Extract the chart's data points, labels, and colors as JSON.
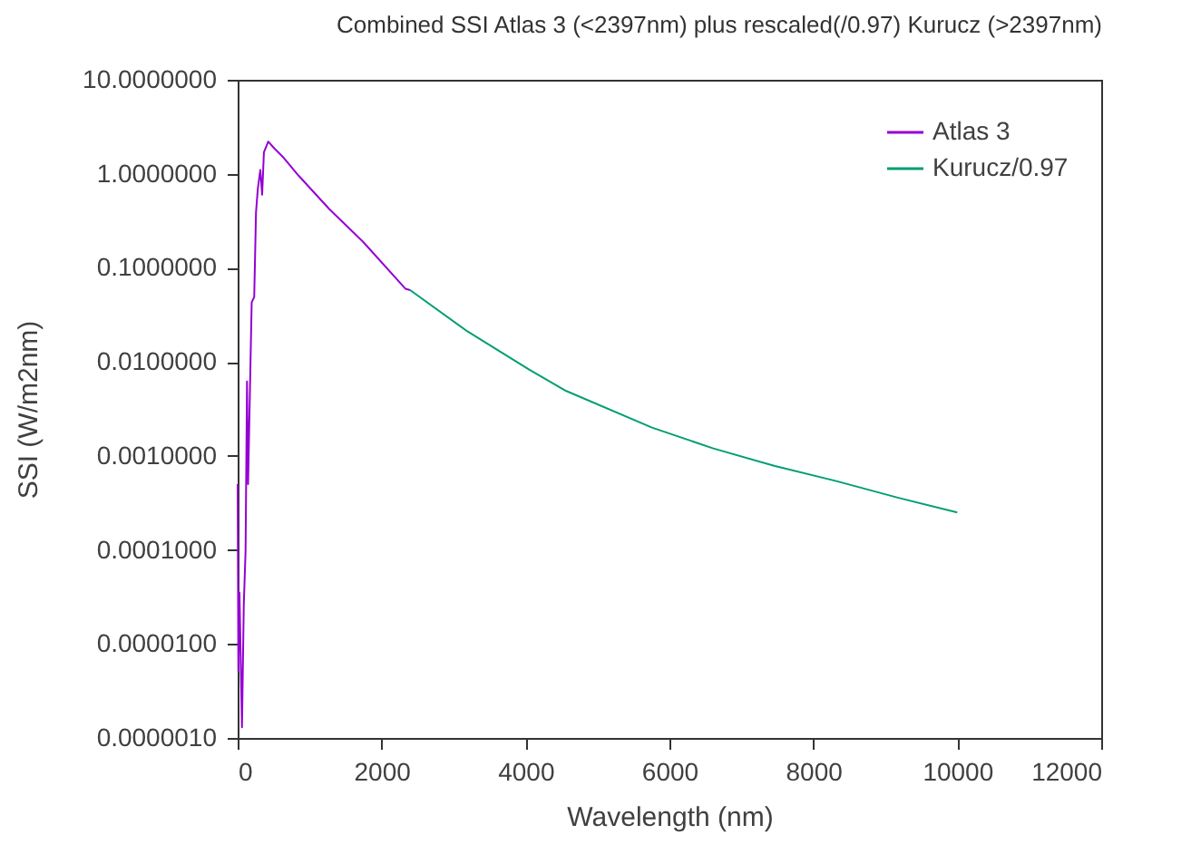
{
  "chart_data": {
    "type": "line",
    "title": "Combined SSI Atlas 3 (<2397nm) plus rescaled(/0.97) Kurucz (>2397nm)",
    "xlabel": "Wavelength (nm)",
    "ylabel": "SSI (W/m2nm)",
    "series": [
      {
        "name": "Atlas 3",
        "color": "#9400d3",
        "x": [
          0,
          10,
          25,
          60,
          85,
          110,
          130,
          145,
          170,
          195,
          230,
          255,
          280,
          315,
          340,
          365,
          425,
          510,
          640,
          850,
          1275,
          1740,
          2330,
          2397
        ],
        "values": [
          0.0005,
          5.1e-06,
          3.5e-05,
          1.3e-06,
          2.6e-05,
          9.8e-05,
          0.0062,
          0.0005,
          0.0047,
          0.043,
          0.049,
          0.39,
          0.69,
          1.1,
          0.6,
          1.7,
          2.2,
          1.86,
          1.48,
          0.95,
          0.42,
          0.19,
          0.06,
          0.058
        ]
      },
      {
        "name": "Kurucz/0.97",
        "color": "#009e73",
        "x": [
          2397,
          3196,
          4050,
          4566,
          5757,
          6610,
          7465,
          8318,
          9171,
          10000
        ],
        "values": [
          0.058,
          0.021,
          0.0083,
          0.0049,
          0.002,
          0.0012,
          0.00078,
          0.00054,
          0.00036,
          0.00025
        ]
      }
    ],
    "xlim": [
      0,
      12000
    ],
    "xticks": [
      0,
      2000,
      4000,
      6000,
      8000,
      10000,
      12000
    ],
    "ylim": [
      1e-06,
      10
    ],
    "yticks": [
      {
        "value": 10,
        "label": "10.0000000"
      },
      {
        "value": 1,
        "label": "1.0000000"
      },
      {
        "value": 0.1,
        "label": "0.1000000"
      },
      {
        "value": 0.01,
        "label": "0.0100000"
      },
      {
        "value": 0.001,
        "label": "0.0010000"
      },
      {
        "value": 0.0001,
        "label": "0.0001000"
      },
      {
        "value": 1e-05,
        "label": "0.0000100"
      },
      {
        "value": 1e-06,
        "label": "0.0000010"
      }
    ],
    "log": "y",
    "legend": "top right"
  }
}
